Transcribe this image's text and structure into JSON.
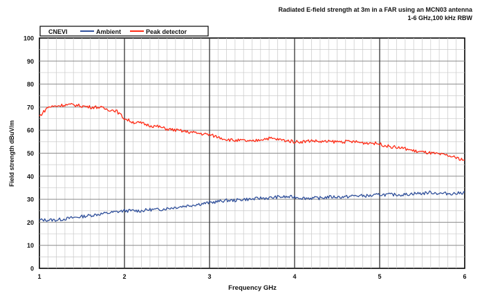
{
  "chart_data": {
    "type": "line",
    "title_lines": [
      "Radiated  E-field strength  at 3m in a FAR using  an MCN03 antenna",
      "1-6 GHz,100 kHz RBW"
    ],
    "xlabel": "Frequency  GHz",
    "ylabel": "Field strength dBuV/m",
    "xlim": [
      1,
      6
    ],
    "ylim": [
      0,
      100
    ],
    "x_ticks": [
      1,
      2,
      3,
      4,
      5,
      6
    ],
    "y_ticks": [
      0,
      10,
      20,
      30,
      40,
      50,
      60,
      70,
      80,
      90,
      100
    ],
    "grid": true,
    "legend_position": "top-left",
    "legend_title": "CNEVI",
    "series": [
      {
        "name": "Ambient",
        "color": "#2f4f9a",
        "x": [
          1.0,
          1.1,
          1.2,
          1.3,
          1.4,
          1.5,
          1.6,
          1.7,
          1.8,
          1.9,
          2.0,
          2.1,
          2.2,
          2.3,
          2.4,
          2.5,
          2.6,
          2.7,
          2.8,
          2.9,
          3.0,
          3.1,
          3.2,
          3.3,
          3.4,
          3.5,
          3.6,
          3.7,
          3.8,
          3.9,
          4.0,
          4.1,
          4.2,
          4.3,
          4.4,
          4.5,
          4.6,
          4.7,
          4.8,
          4.9,
          5.0,
          5.1,
          5.2,
          5.3,
          5.4,
          5.5,
          5.6,
          5.7,
          5.8,
          5.9,
          6.0
        ],
        "y": [
          21,
          21,
          21,
          21.5,
          22,
          22.5,
          23,
          23.5,
          24,
          24.5,
          25,
          25,
          25,
          25.5,
          25.5,
          26,
          26.5,
          27,
          27.5,
          28,
          28.5,
          29,
          29.5,
          29.5,
          30,
          30,
          30.5,
          30.5,
          31,
          31,
          31,
          30.5,
          30.5,
          30.5,
          31,
          31,
          31,
          31.5,
          31.5,
          31.5,
          32,
          32,
          32,
          32,
          32.5,
          32.5,
          33,
          32.5,
          32.5,
          32.5,
          33
        ]
      },
      {
        "name": "Peak detector",
        "color": "#ff2a14",
        "x": [
          1.0,
          1.1,
          1.2,
          1.3,
          1.4,
          1.5,
          1.6,
          1.7,
          1.8,
          1.9,
          2.0,
          2.1,
          2.2,
          2.3,
          2.4,
          2.5,
          2.6,
          2.7,
          2.8,
          2.9,
          3.0,
          3.1,
          3.2,
          3.3,
          3.4,
          3.5,
          3.6,
          3.7,
          3.8,
          3.9,
          4.0,
          4.1,
          4.2,
          4.3,
          4.4,
          4.5,
          4.6,
          4.7,
          4.8,
          4.9,
          5.0,
          5.1,
          5.2,
          5.3,
          5.4,
          5.5,
          5.6,
          5.7,
          5.8,
          5.9,
          6.0
        ],
        "y": [
          66,
          70,
          70.5,
          71,
          71,
          70.5,
          70,
          70,
          69,
          68.5,
          65,
          63.5,
          63,
          62,
          61.5,
          60.5,
          60,
          59.5,
          59,
          58.5,
          58,
          57,
          56,
          55.5,
          55.5,
          55,
          56,
          56.5,
          56,
          55.5,
          55,
          55,
          55.5,
          55,
          55,
          55,
          55,
          55,
          54.5,
          54.5,
          54,
          53,
          52.5,
          52,
          51,
          50.5,
          50,
          49.5,
          49,
          48,
          47
        ]
      }
    ]
  }
}
